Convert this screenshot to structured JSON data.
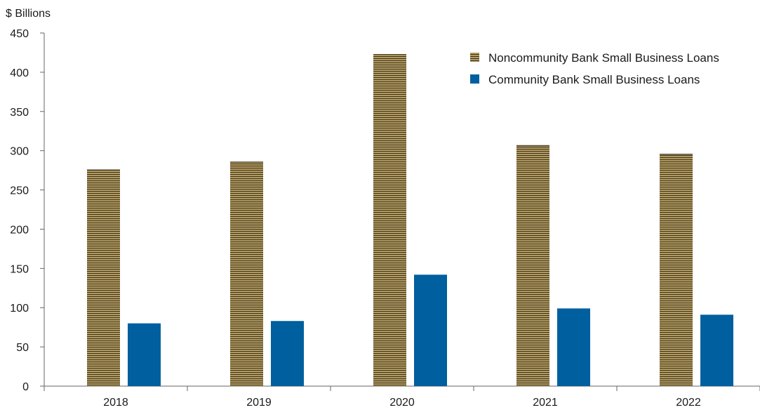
{
  "chart_data": {
    "type": "bar",
    "ylabel": "$ Billions",
    "categories": [
      "2018",
      "2019",
      "2020",
      "2021",
      "2022"
    ],
    "ylim": [
      0,
      450
    ],
    "yticks": [
      0,
      50,
      100,
      150,
      200,
      250,
      300,
      350,
      400,
      450
    ],
    "grid": false,
    "legend_position": "top-right",
    "series": [
      {
        "name": "Noncommunity Bank Small Business Loans",
        "values": [
          276,
          286,
          423,
          307,
          296
        ],
        "color": "#b29a5e",
        "pattern": "horizontal-stripes"
      },
      {
        "name": "Community Bank Small Business Loans",
        "values": [
          80,
          83,
          142,
          99,
          91
        ],
        "color": "#005f9e"
      }
    ]
  }
}
